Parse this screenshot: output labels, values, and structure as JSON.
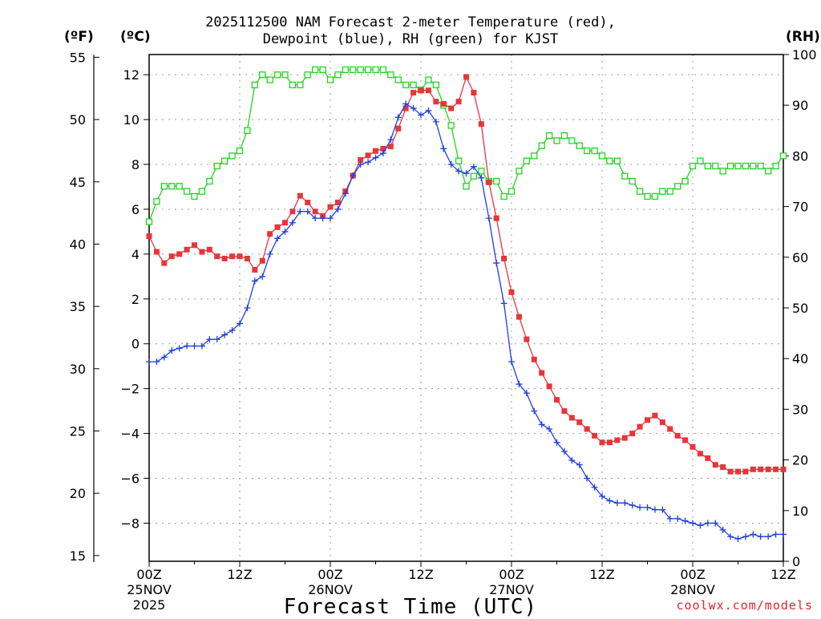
{
  "header": {
    "title_line1": "2025112500 NAM Forecast 2-meter Temperature (red),",
    "title_line2": "Dewpoint (blue), RH (green) for KJST",
    "unit_f": "(ºF)",
    "unit_c": "(ºC)",
    "unit_rh": "(RH)"
  },
  "footer": {
    "xlabel": "Forecast Time (UTC)",
    "credit": "coolwx.com/models"
  },
  "colors": {
    "temperature": "#e8353a",
    "dewpoint": "#1f3fe0",
    "rh": "#1fd61f",
    "grid": "#999999",
    "credit": "#e0262c"
  },
  "chart_data": {
    "type": "line",
    "title": "2025112500 NAM Forecast 2-meter Temperature (red), Dewpoint (blue), RH (green) for KJST",
    "xlabel": "Forecast Time (UTC)",
    "x_hours": [
      0,
      1,
      2,
      3,
      4,
      5,
      6,
      7,
      8,
      9,
      10,
      11,
      12,
      13,
      14,
      15,
      16,
      17,
      18,
      19,
      20,
      21,
      22,
      23,
      24,
      25,
      26,
      27,
      28,
      29,
      30,
      31,
      32,
      33,
      34,
      35,
      36,
      37,
      38,
      39,
      40,
      41,
      42,
      43,
      44,
      45,
      46,
      47,
      48,
      49,
      50,
      51,
      52,
      53,
      54,
      55,
      56,
      57,
      58,
      59,
      60,
      61,
      62,
      63,
      64,
      65,
      66,
      67,
      68,
      69,
      70,
      71,
      72,
      73,
      74,
      75,
      76,
      77,
      78,
      79,
      80,
      81,
      82,
      83,
      84
    ],
    "x_ticks": [
      {
        "hour": 0,
        "label": "00Z",
        "sub1": "25NOV",
        "sub2": "2025"
      },
      {
        "hour": 12,
        "label": "12Z",
        "sub1": "",
        "sub2": ""
      },
      {
        "hour": 24,
        "label": "00Z",
        "sub1": "26NOV",
        "sub2": ""
      },
      {
        "hour": 36,
        "label": "12Z",
        "sub1": "",
        "sub2": ""
      },
      {
        "hour": 48,
        "label": "00Z",
        "sub1": "27NOV",
        "sub2": ""
      },
      {
        "hour": 60,
        "label": "12Z",
        "sub1": "",
        "sub2": ""
      },
      {
        "hour": 72,
        "label": "00Z",
        "sub1": "28NOV",
        "sub2": ""
      },
      {
        "hour": 84,
        "label": "12Z",
        "sub1": "",
        "sub2": ""
      }
    ],
    "xlim": [
      0,
      84
    ],
    "y_celsius": {
      "lim": [
        -9.7,
        12.9
      ],
      "ticks": [
        12,
        10,
        8,
        6,
        4,
        2,
        0,
        -2,
        -4,
        -6,
        -8
      ]
    },
    "y_fahrenheit": {
      "ticks": [
        55,
        50,
        45,
        40,
        35,
        30,
        25,
        20,
        15
      ]
    },
    "y_rh": {
      "lim": [
        0,
        100
      ],
      "ticks": [
        100,
        90,
        80,
        70,
        60,
        50,
        40,
        30,
        20,
        10,
        0
      ]
    },
    "grid": true,
    "series": [
      {
        "name": "Temperature (red)",
        "axis": "celsius",
        "marker": "filled-square",
        "values": [
          4.8,
          4.1,
          3.6,
          3.9,
          4.0,
          4.2,
          4.4,
          4.1,
          4.2,
          3.9,
          3.8,
          3.9,
          3.9,
          3.8,
          3.3,
          3.7,
          4.9,
          5.2,
          5.4,
          5.9,
          6.6,
          6.3,
          5.9,
          5.7,
          6.1,
          6.3,
          6.8,
          7.5,
          8.2,
          8.4,
          8.6,
          8.7,
          8.8,
          9.6,
          10.5,
          11.2,
          11.3,
          11.3,
          10.8,
          10.7,
          10.5,
          10.8,
          11.9,
          11.2,
          9.8,
          7.2,
          5.6,
          3.8,
          2.3,
          1.2,
          0.2,
          -0.7,
          -1.3,
          -1.9,
          -2.5,
          -3.0,
          -3.3,
          -3.5,
          -3.8,
          -4.1,
          -4.4,
          -4.4,
          -4.3,
          -4.2,
          -4.0,
          -3.7,
          -3.4,
          -3.2,
          -3.5,
          -3.8,
          -4.1,
          -4.3,
          -4.6,
          -4.9,
          -5.1,
          -5.4,
          -5.5,
          -5.7,
          -5.7,
          -5.7,
          -5.6,
          -5.6,
          -5.6,
          -5.6,
          -5.6
        ]
      },
      {
        "name": "Dewpoint (blue)",
        "axis": "celsius",
        "marker": "plus",
        "values": [
          -0.8,
          -0.8,
          -0.6,
          -0.3,
          -0.2,
          -0.1,
          -0.1,
          -0.1,
          0.2,
          0.2,
          0.4,
          0.6,
          0.9,
          1.6,
          2.8,
          3.0,
          4.0,
          4.7,
          5.0,
          5.4,
          5.9,
          5.9,
          5.6,
          5.6,
          5.6,
          6.0,
          6.7,
          7.5,
          8.0,
          8.1,
          8.3,
          8.5,
          9.1,
          10.1,
          10.7,
          10.5,
          10.2,
          10.4,
          9.9,
          8.7,
          8.0,
          7.7,
          7.6,
          7.9,
          7.4,
          5.6,
          3.6,
          1.8,
          -0.8,
          -1.8,
          -2.2,
          -3.0,
          -3.6,
          -3.8,
          -4.4,
          -4.8,
          -5.2,
          -5.4,
          -6.0,
          -6.4,
          -6.8,
          -7.0,
          -7.1,
          -7.1,
          -7.2,
          -7.3,
          -7.3,
          -7.4,
          -7.4,
          -7.8,
          -7.8,
          -7.9,
          -8.0,
          -8.1,
          -8.0,
          -8.0,
          -8.3,
          -8.6,
          -8.7,
          -8.6,
          -8.5,
          -8.6,
          -8.6,
          -8.5,
          -8.5
        ]
      },
      {
        "name": "RH (green)",
        "axis": "rh",
        "marker": "open-square",
        "values": [
          67,
          71,
          74,
          74,
          74,
          73,
          72,
          73,
          75,
          78,
          79,
          80,
          81,
          85,
          94,
          96,
          95,
          96,
          96,
          94,
          94,
          96,
          97,
          97,
          95,
          96,
          97,
          97,
          97,
          97,
          97,
          97,
          96,
          95,
          94,
          94,
          93,
          95,
          94,
          90,
          86,
          79,
          74,
          76,
          77,
          75,
          75,
          72,
          73,
          77,
          79,
          80,
          82,
          84,
          83,
          84,
          83,
          82,
          81,
          81,
          80,
          79,
          79,
          76,
          75,
          73,
          72,
          72,
          73,
          73,
          74,
          75,
          78,
          79,
          78,
          78,
          77,
          78,
          78,
          78,
          78,
          78,
          77,
          78,
          80
        ]
      }
    ]
  }
}
